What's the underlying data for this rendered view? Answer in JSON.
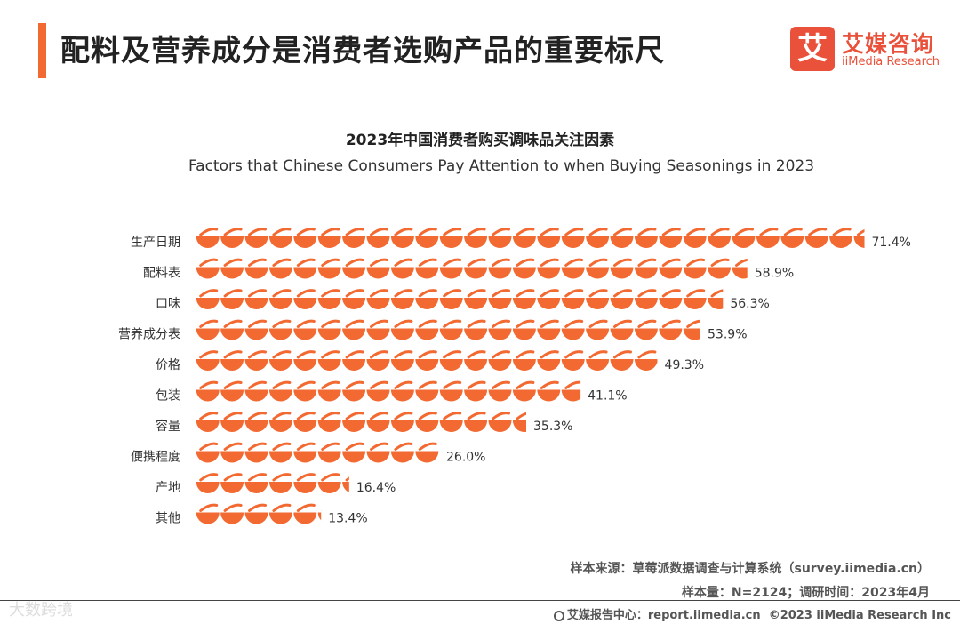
{
  "page": {
    "title": "配料及营养成分是消费者选购产品的重要标尺",
    "accent_color": "#f26a32"
  },
  "logo": {
    "mark": "艾",
    "cn": "艾媒咨询",
    "en": "iiMedia Research",
    "color": "#e9513b"
  },
  "chart_data": {
    "type": "bar",
    "orientation": "horizontal",
    "title": "2023年中国消费者购买调味品关注因素",
    "subtitle": "Factors that Chinese Consumers Pay Attention to when Buying Seasonings in 2023",
    "categories": [
      "生产日期",
      "配料表",
      "口味",
      "营养成分表",
      "价格",
      "包装",
      "容量",
      "便携程度",
      "产地",
      "其他"
    ],
    "values": [
      71.4,
      58.9,
      56.3,
      53.9,
      49.3,
      41.1,
      35.3,
      26.0,
      16.4,
      13.4
    ],
    "value_labels": [
      "71.4%",
      "58.9%",
      "56.3%",
      "53.9%",
      "49.3%",
      "41.1%",
      "35.3%",
      "26.0%",
      "16.4%",
      "13.4%"
    ],
    "unit": "%",
    "units_per_icon": 2.6,
    "bar_color": "#f26a32",
    "xlim": [
      0,
      72
    ],
    "grid": false,
    "legend": "none"
  },
  "footer": {
    "source": "样本来源：草莓派数据调查与计算系统（survey.iimedia.cn）",
    "sample": "样本量：N=2124；调研时间：2023年4月",
    "watermark": "大数跨境",
    "report": "艾媒报告中心：report.iimedia.cn",
    "copyright": "©2023  iiMedia Research  Inc"
  }
}
